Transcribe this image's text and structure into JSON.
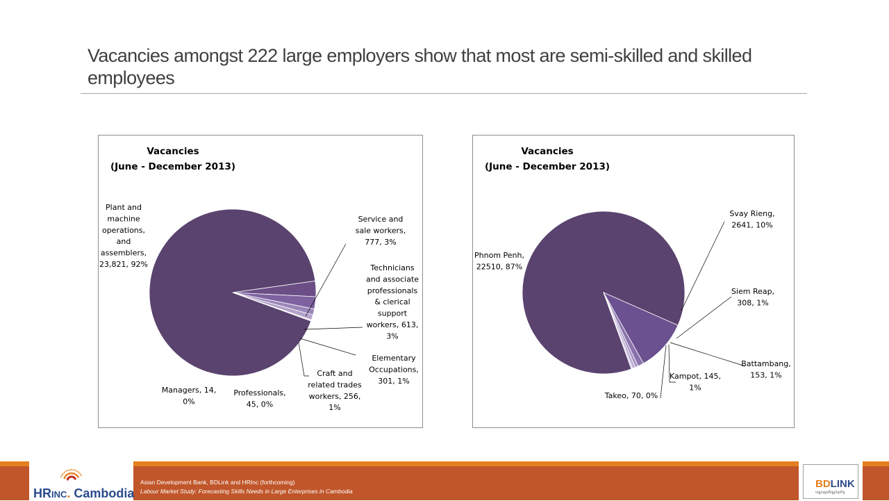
{
  "slide": {
    "title": "Vacancies amongst 222 large employers show that most are semi-skilled and skilled employees"
  },
  "chart_data": [
    {
      "type": "pie",
      "title": "Vacancies",
      "subtitle": "(June - December 2013)",
      "slices": [
        {
          "label_lines": [
            "Plant and",
            "machine",
            "operations,",
            "and",
            "assemblers,",
            "23,821, 92%"
          ],
          "value": 23821,
          "percent": "92%"
        },
        {
          "label_lines": [
            "Service and",
            "sale workers,",
            "777, 3%"
          ],
          "value": 777,
          "percent": "3%"
        },
        {
          "label_lines": [
            "Technicians",
            "and associate",
            "professionals",
            "& clerical",
            "support",
            "workers, 613,",
            "3%"
          ],
          "value": 613,
          "percent": "3%"
        },
        {
          "label_lines": [
            "Elementary",
            "Occupations,",
            "301, 1%"
          ],
          "value": 301,
          "percent": "1%"
        },
        {
          "label_lines": [
            "Craft and",
            "related trades",
            "workers, 256,",
            "1%"
          ],
          "value": 256,
          "percent": "1%"
        },
        {
          "label_lines": [
            "Professionals,",
            "45, 0%"
          ],
          "value": 45,
          "percent": "0%"
        },
        {
          "label_lines": [
            "Managers, 14,",
            "0%"
          ],
          "value": 14,
          "percent": "0%"
        }
      ],
      "colors": [
        "#5a436e",
        "#6b4e86",
        "#7e62a0",
        "#9b86b8",
        "#b3a2ca",
        "#c9bddb",
        "#ddd3ea"
      ]
    },
    {
      "type": "pie",
      "title": "Vacancies",
      "subtitle": "(June - December 2013)",
      "slices": [
        {
          "label_lines": [
            "Phnom Penh,",
            "22510, 87%"
          ],
          "value": 22510,
          "percent": "87%"
        },
        {
          "label_lines": [
            "Svay Rieng,",
            "2641, 10%"
          ],
          "value": 2641,
          "percent": "10%"
        },
        {
          "label_lines": [
            "Siem Reap,",
            "308, 1%"
          ],
          "value": 308,
          "percent": "1%"
        },
        {
          "label_lines": [
            "Battambang,",
            "153, 1%"
          ],
          "value": 153,
          "percent": "1%"
        },
        {
          "label_lines": [
            "Kampot, 145,",
            "1%"
          ],
          "value": 145,
          "percent": "1%"
        },
        {
          "label_lines": [
            "Takeo, 70, 0%"
          ],
          "value": 70,
          "percent": "0%"
        }
      ],
      "colors": [
        "#5a436e",
        "#6b5190",
        "#8a73ab",
        "#a593c2",
        "#bcaed4",
        "#d2c8e3"
      ]
    }
  ],
  "footer": {
    "source_line1": "Asian Development Bank, BDLink and HRInc (forthcoming)",
    "source_line2": "Labour Market Study: Forecasting Skills Needs in Large Enterprises in Cambodia",
    "logo_left_hr": "HR",
    "logo_left_inc": "INC",
    "logo_left_dot": ".",
    "logo_left_cambodia": " Cambodia",
    "logo_right_bd": "BD",
    "logo_right_link": "LINK",
    "logo_right_tagline": "បណ្តាញអភិវឌ្ឍន៍ធុរកិច្ច"
  }
}
